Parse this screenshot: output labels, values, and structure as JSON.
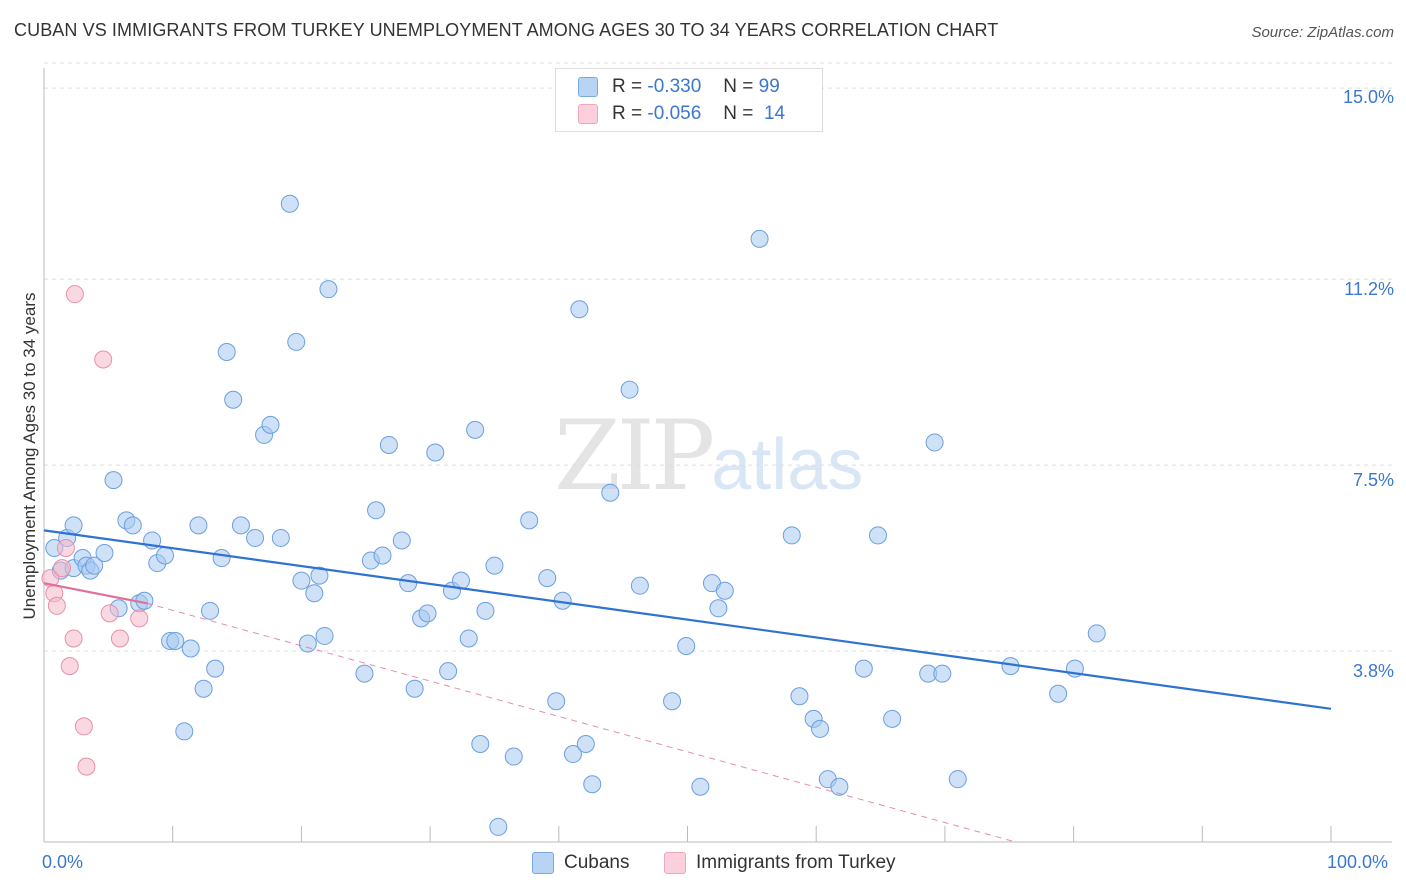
{
  "title": "CUBAN VS IMMIGRANTS FROM TURKEY UNEMPLOYMENT AMONG AGES 30 TO 34 YEARS CORRELATION CHART",
  "source": "Source: ZipAtlas.com",
  "watermark": {
    "zip": "ZIP",
    "atlas": "atlas"
  },
  "legend": {
    "rows": [
      {
        "r_label": "R =",
        "r_value": "-0.330",
        "n_label": "N =",
        "n_value": "99",
        "color": "#a8c8f0"
      },
      {
        "r_label": "R =",
        "r_value": "-0.056",
        "n_label": "N =",
        "n_value": "14",
        "color": "#f5b8c8"
      }
    ]
  },
  "bottom_legend": {
    "cubans": "Cubans",
    "turkey": "Immigrants from Turkey"
  },
  "chart_data": {
    "type": "scatter",
    "title": "CUBAN VS IMMIGRANTS FROM TURKEY UNEMPLOYMENT AMONG AGES 30 TO 34 YEARS CORRELATION CHART",
    "xlabel": "",
    "ylabel": "Unemployment Among Ages 30 to 34 years",
    "xlim": [
      0,
      100
    ],
    "ylim": [
      0,
      15.5
    ],
    "x_tick_labels": [
      "0.0%",
      "100.0%"
    ],
    "y_ticks": [
      3.8,
      7.5,
      11.2,
      15.0
    ],
    "y_tick_labels": [
      "3.8%",
      "7.5%",
      "11.2%",
      "15.0%"
    ],
    "grid": "horizontal dashed",
    "legend_position": "top-center",
    "colors": {
      "cubans": "#a8c8f0",
      "cubans_edge": "#6a9fe0",
      "cubans_line": "#2f72d0",
      "turkey": "#f5b8c8",
      "turkey_edge": "#e890a8",
      "turkey_line": "#e0709a"
    },
    "series": [
      {
        "name": "Cubans",
        "trend": {
          "x": [
            0,
            100
          ],
          "y": [
            6.2,
            2.65
          ]
        },
        "points": [
          [
            0.8,
            5.85
          ],
          [
            1.3,
            5.4
          ],
          [
            1.8,
            6.05
          ],
          [
            2.3,
            5.45
          ],
          [
            2.3,
            6.3
          ],
          [
            3.0,
            5.65
          ],
          [
            3.3,
            5.5
          ],
          [
            3.6,
            5.4
          ],
          [
            3.9,
            5.5
          ],
          [
            4.7,
            5.75
          ],
          [
            5.4,
            7.2
          ],
          [
            5.8,
            4.65
          ],
          [
            6.4,
            6.4
          ],
          [
            6.9,
            6.3
          ],
          [
            7.4,
            4.75
          ],
          [
            7.8,
            4.8
          ],
          [
            8.4,
            6.0
          ],
          [
            8.8,
            5.55
          ],
          [
            9.4,
            5.7
          ],
          [
            9.8,
            4.0
          ],
          [
            10.2,
            4.0
          ],
          [
            10.9,
            2.2
          ],
          [
            11.4,
            3.85
          ],
          [
            12.0,
            6.3
          ],
          [
            12.4,
            3.05
          ],
          [
            12.9,
            4.6
          ],
          [
            13.3,
            3.45
          ],
          [
            13.8,
            5.65
          ],
          [
            14.2,
            9.75
          ],
          [
            14.7,
            8.8
          ],
          [
            15.3,
            6.3
          ],
          [
            16.4,
            6.05
          ],
          [
            17.1,
            8.1
          ],
          [
            17.6,
            8.3
          ],
          [
            18.4,
            6.05
          ],
          [
            19.1,
            12.7
          ],
          [
            19.6,
            9.95
          ],
          [
            20.0,
            5.2
          ],
          [
            20.5,
            3.95
          ],
          [
            21.0,
            4.95
          ],
          [
            21.4,
            5.3
          ],
          [
            21.8,
            4.1
          ],
          [
            22.1,
            11.0
          ],
          [
            24.9,
            3.35
          ],
          [
            25.4,
            5.6
          ],
          [
            25.8,
            6.6
          ],
          [
            26.3,
            5.7
          ],
          [
            26.8,
            7.9
          ],
          [
            27.8,
            6.0
          ],
          [
            28.3,
            5.15
          ],
          [
            28.8,
            3.05
          ],
          [
            29.3,
            4.45
          ],
          [
            29.8,
            4.55
          ],
          [
            30.4,
            7.75
          ],
          [
            31.4,
            3.4
          ],
          [
            31.7,
            5.0
          ],
          [
            32.4,
            5.2
          ],
          [
            33.0,
            4.05
          ],
          [
            33.5,
            8.2
          ],
          [
            33.9,
            1.95
          ],
          [
            34.3,
            4.6
          ],
          [
            35.0,
            5.5
          ],
          [
            35.3,
            0.3
          ],
          [
            36.5,
            1.7
          ],
          [
            37.7,
            6.4
          ],
          [
            39.1,
            5.25
          ],
          [
            39.8,
            2.8
          ],
          [
            40.3,
            4.8
          ],
          [
            41.1,
            1.75
          ],
          [
            41.6,
            10.6
          ],
          [
            42.1,
            1.95
          ],
          [
            42.6,
            1.15
          ],
          [
            44.0,
            6.95
          ],
          [
            45.5,
            9.0
          ],
          [
            46.3,
            5.1
          ],
          [
            48.8,
            2.8
          ],
          [
            49.9,
            3.9
          ],
          [
            51.0,
            1.1
          ],
          [
            51.9,
            5.15
          ],
          [
            52.4,
            4.65
          ],
          [
            52.9,
            5.0
          ],
          [
            55.6,
            12.0
          ],
          [
            58.1,
            6.1
          ],
          [
            58.7,
            2.9
          ],
          [
            59.8,
            2.45
          ],
          [
            60.3,
            2.25
          ],
          [
            60.9,
            1.25
          ],
          [
            61.8,
            1.1
          ],
          [
            63.7,
            3.45
          ],
          [
            64.8,
            6.1
          ],
          [
            65.9,
            2.45
          ],
          [
            68.7,
            3.35
          ],
          [
            69.2,
            7.95
          ],
          [
            69.8,
            3.35
          ],
          [
            71.0,
            1.25
          ],
          [
            75.1,
            3.5
          ],
          [
            78.8,
            2.95
          ],
          [
            80.1,
            3.45
          ],
          [
            81.8,
            4.15
          ]
        ]
      },
      {
        "name": "Immigrants from Turkey",
        "trend": {
          "x": [
            0,
            8.0
          ],
          "y": [
            5.15,
            4.75
          ]
        },
        "trend_extension": {
          "x": [
            8.0,
            75.5
          ],
          "y": [
            4.75,
            0.0
          ]
        },
        "points": [
          [
            0.5,
            5.25
          ],
          [
            0.8,
            4.95
          ],
          [
            1.0,
            4.7
          ],
          [
            1.4,
            5.45
          ],
          [
            1.7,
            5.85
          ],
          [
            2.0,
            3.5
          ],
          [
            2.3,
            4.05
          ],
          [
            2.4,
            10.9
          ],
          [
            3.1,
            2.3
          ],
          [
            3.3,
            1.5
          ],
          [
            4.6,
            9.6
          ],
          [
            5.1,
            4.55
          ],
          [
            5.9,
            4.05
          ],
          [
            7.4,
            4.45
          ]
        ]
      }
    ]
  }
}
